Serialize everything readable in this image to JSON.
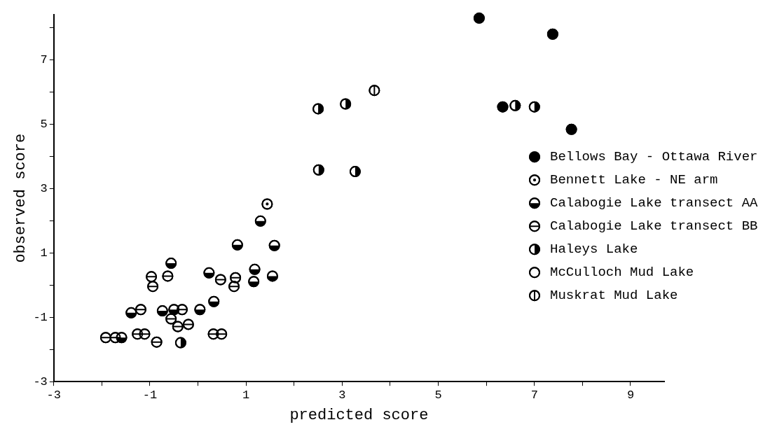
{
  "chart_data": {
    "type": "scatter",
    "xlabel": "predicted score",
    "ylabel": "observed score",
    "xlim": [
      -3,
      9.7
    ],
    "ylim": [
      -3,
      8.4
    ],
    "xticks": [
      -3,
      {
        "value": -2,
        "label": null
      },
      -1,
      {
        "value": 0,
        "label": null
      },
      1,
      {
        "value": 2,
        "label": null
      },
      3,
      {
        "value": 4,
        "label": null
      },
      5,
      {
        "value": 6,
        "label": null
      },
      7,
      {
        "value": 8,
        "label": null
      },
      9
    ],
    "yticks": [
      -3,
      {
        "value": -2,
        "label": null
      },
      -1,
      {
        "value": 0,
        "label": null
      },
      1,
      {
        "value": 2,
        "label": null
      },
      3,
      {
        "value": 4,
        "label": null
      },
      5,
      {
        "value": 6,
        "label": null
      },
      7,
      {
        "value": 8,
        "label": null
      }
    ],
    "grid": false,
    "legend": "right",
    "series": [
      {
        "name": "Bellows Bay - Ottawa River",
        "color": "#000000",
        "x": [
          5.85,
          7.38,
          6.34,
          7.77
        ],
        "values": [
          8.3,
          7.8,
          5.54,
          4.84
        ]
      },
      {
        "name": "Bennett Lake - NE arm",
        "color": "#000000",
        "x": [
          1.44
        ],
        "values": [
          2.52
        ]
      },
      {
        "name": "Calabogie Lake transect AA",
        "color": "#000000",
        "x": [
          1.3,
          0.82,
          1.59,
          -0.56,
          0.23,
          1.18,
          1.16,
          1.55,
          0.33,
          0.04,
          -1.39,
          -0.74,
          -0.5,
          -1.59
        ],
        "values": [
          1.99,
          1.25,
          1.23,
          0.68,
          0.38,
          0.49,
          0.11,
          0.28,
          -0.51,
          -0.76,
          -0.86,
          -0.8,
          -0.76,
          -1.63
        ]
      },
      {
        "name": "Calabogie Lake transect BB",
        "color": "#000000",
        "x": [
          -0.97,
          -0.63,
          -0.94,
          0.47,
          0.78,
          0.75,
          -1.19,
          -0.33,
          -0.56,
          -0.42,
          -0.2,
          -1.92,
          -1.72,
          -1.26,
          -1.11,
          -0.86,
          0.32,
          0.49
        ],
        "values": [
          0.26,
          0.28,
          -0.04,
          0.17,
          0.23,
          -0.04,
          -0.76,
          -0.76,
          -1.05,
          -1.29,
          -1.22,
          -1.63,
          -1.63,
          -1.52,
          -1.52,
          -1.77,
          -1.52,
          -1.52
        ]
      },
      {
        "name": "Haleys Lake",
        "color": "#000000",
        "x": [
          -0.36,
          3.07,
          2.5,
          6.6,
          7.0,
          2.51,
          3.27
        ],
        "values": [
          -1.79,
          5.63,
          5.48,
          5.58,
          5.54,
          3.58,
          3.53
        ]
      },
      {
        "name": "McCulloch Mud Lake",
        "color": "#000000"
      },
      {
        "name": "Muskrat Mud Lake",
        "color": "#000000",
        "x": [
          3.67
        ],
        "values": [
          6.05
        ]
      }
    ]
  }
}
